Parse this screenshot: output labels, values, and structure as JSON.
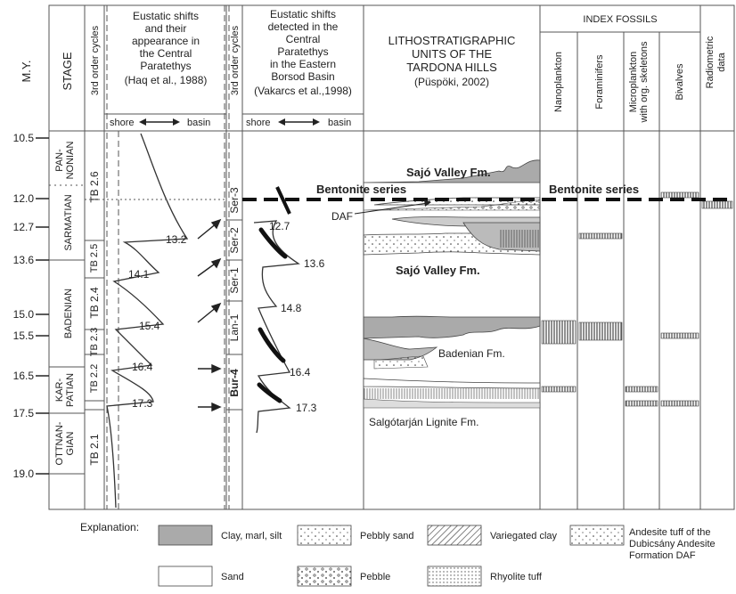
{
  "header": {
    "my": "M.Y.",
    "stage": "STAGE",
    "cycles_left": "3rd order cycles",
    "cycles_mid": "3rd order cycles",
    "haq_lines": [
      "Eustatic shifts",
      "and their",
      "appearance in",
      "the Central",
      "Paratethys",
      "(Haq et al., 1988)"
    ],
    "vak_lines": [
      "Eustatic shifts",
      "detected in the",
      "Central",
      "Paratethys",
      "in the Eastern",
      "Borsod Basin",
      "(Vakarcs et al.,1998)"
    ],
    "shore": "shore",
    "basin": "basin",
    "litho_lines": [
      "LITHOSTRATIGRAPHIC",
      "UNITS OF THE",
      "TARDONA HILLS"
    ],
    "litho_ref": "(Püspöki, 2002)",
    "index_fossils": "INDEX FOSSILS",
    "fossils": [
      "Nanoplankton",
      "Foraminifers",
      "Microplankton",
      "with org. skeletons",
      "Bivalves"
    ],
    "radiometric": [
      "Radiometric",
      "data"
    ]
  },
  "ages": [
    "10.5",
    "12.0",
    "12.7",
    "13.6",
    "15.0",
    "15.5",
    "16.5",
    "17.5",
    "19.0"
  ],
  "stages": [
    "PAN-",
    "NONIAN",
    "SARMATIAN",
    "BADENIAN",
    "KAR-",
    "PATIAN",
    "OTTNAN-",
    "GIAN"
  ],
  "tb_cycles": [
    "TB 2.6",
    "TB 2.5",
    "TB 2.4",
    "TB 2.3",
    "TB 2.2",
    "TB 2.1"
  ],
  "ser_cycles": [
    "Ser-3",
    "Ser-2",
    "Ser-1",
    "Lan-1",
    "Bur-4"
  ],
  "haq_values": [
    "13.2",
    "14.1",
    "15.4",
    "16.4",
    "17.3"
  ],
  "vak_values": [
    "12.7",
    "13.6",
    "14.8",
    "16.4",
    "17.3"
  ],
  "formations": {
    "sajo_top": "Sajó Valley Fm.",
    "bentonite": "Bentonite series",
    "daf": "DAF",
    "sajo_mid": "Sajó Valley Fm.",
    "badenian": "Badenian Fm.",
    "salgotarjan": "Salgótarján Lignite Fm.",
    "bentonite_right": "Bentonite series"
  },
  "legend": {
    "title": "Explanation:",
    "items": [
      "Clay, marl, silt",
      "Pebbly sand",
      "Variegated clay",
      "Andesite tuff of the",
      "Dubicsány Andesite",
      "Formation DAF",
      "Sand",
      "Pebble",
      "Rhyolite tuff"
    ]
  }
}
